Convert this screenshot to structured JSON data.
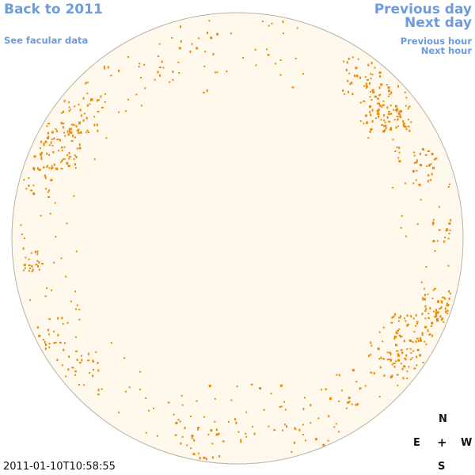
{
  "nav": {
    "back_label": "Back to 2011",
    "facular_label": "See facular data",
    "previous_day_label": "Previous day",
    "next_day_label": "Next day",
    "previous_hour_label": "Previous hour",
    "next_hour_label": "Next hour"
  },
  "compass": {
    "north": "N",
    "east": "E",
    "center": "+",
    "west": "W",
    "south": "S"
  },
  "timestamp": "2011-01-10T10:58:55",
  "colors": {
    "disk_fill": "#fef9ec",
    "disk_stroke": "#b8b2a4",
    "facula": "#e98a0a",
    "link": "#6d9be0"
  }
}
